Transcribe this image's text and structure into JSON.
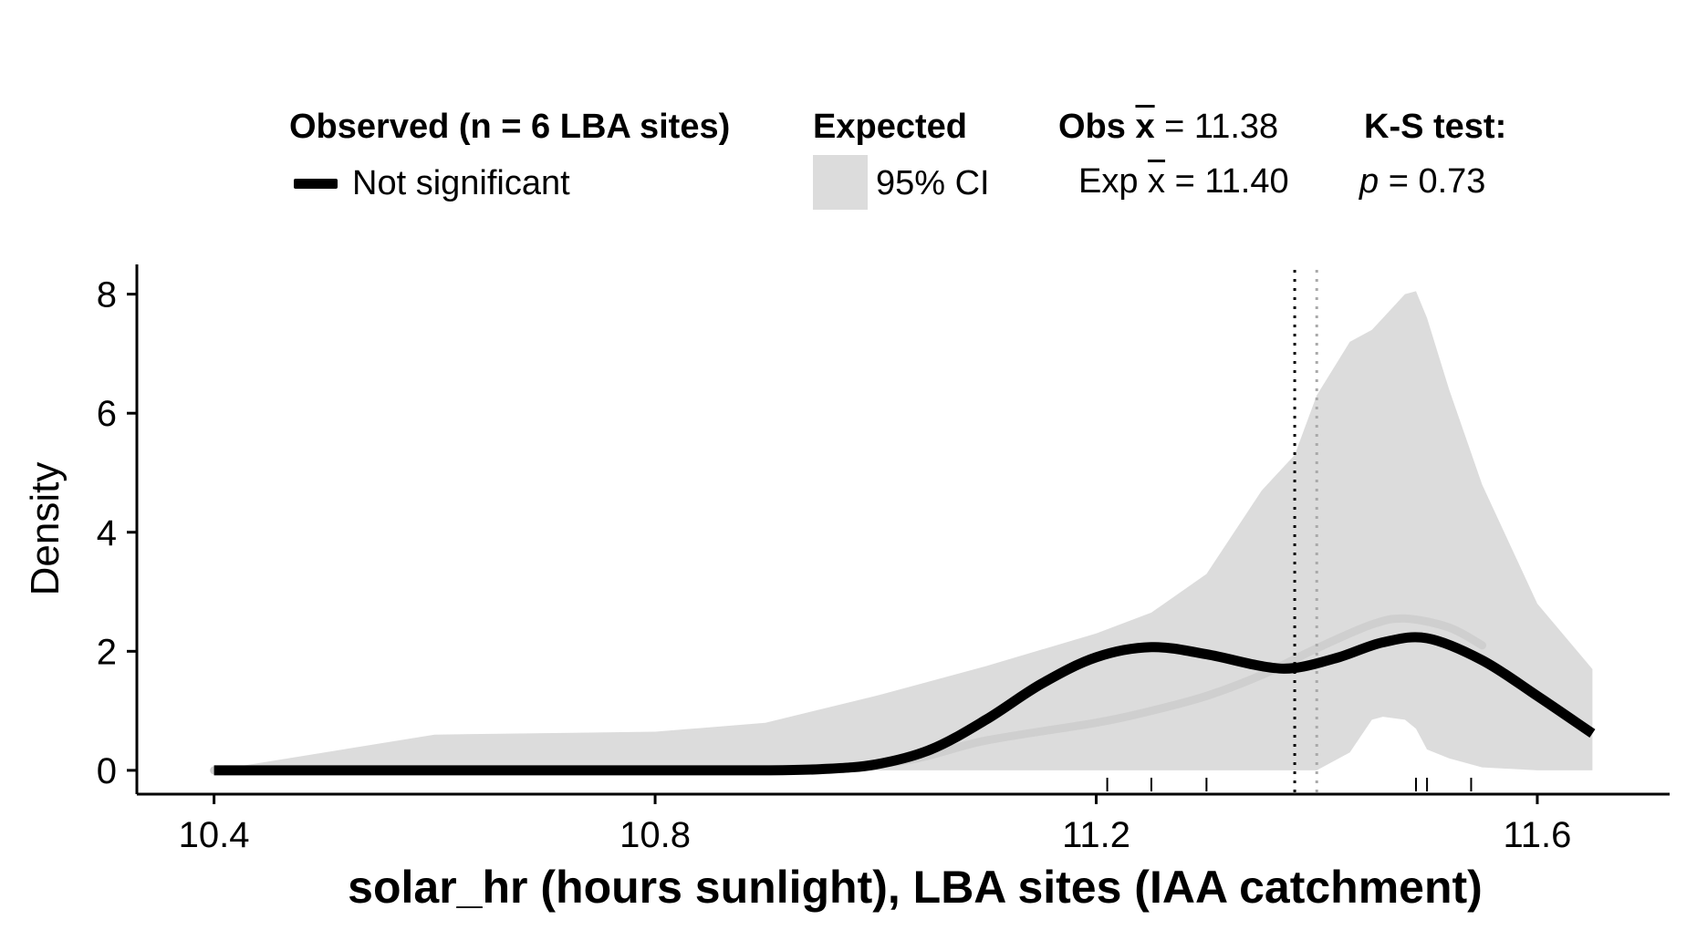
{
  "legend": {
    "observed_title": "Observed (n = 6 LBA sites)",
    "observed_key": "Not significant",
    "expected_title": "Expected",
    "expected_key": "95% CI",
    "obs_mean_label": "Obs",
    "obs_mean_symbol": "x",
    "obs_mean_value": "= 11.38",
    "exp_mean_label": "Exp",
    "exp_mean_symbol": "x",
    "exp_mean_value": "= 11.40",
    "ks_title": "K-S test:",
    "ks_p_symbol": "p",
    "ks_p_value": "= 0.73"
  },
  "chart_data": {
    "type": "line",
    "xlabel": "solar_hr (hours sunlight), LBA sites (IAA catchment)",
    "ylabel": "Density",
    "xlim": [
      10.33,
      11.72
    ],
    "ylim": [
      -0.4,
      8.5
    ],
    "x_ticks": [
      "10.4",
      "10.8",
      "11.2",
      "11.6"
    ],
    "y_ticks": [
      "0",
      "2",
      "4",
      "6",
      "8"
    ],
    "grid": false,
    "legend_position": "top",
    "observed_density": {
      "name": "Not significant",
      "color": "#000000",
      "x": [
        10.4,
        10.6,
        10.8,
        10.9,
        10.95,
        11.0,
        11.05,
        11.1,
        11.15,
        11.2,
        11.25,
        11.3,
        11.35,
        11.38,
        11.42,
        11.46,
        11.5,
        11.55,
        11.6,
        11.65
      ],
      "y": [
        0,
        0,
        0,
        0,
        0.02,
        0.1,
        0.35,
        0.85,
        1.45,
        1.9,
        2.07,
        1.95,
        1.75,
        1.72,
        1.9,
        2.15,
        2.22,
        1.85,
        1.25,
        0.62
      ]
    },
    "expected_mean_density": {
      "color": "#cfcfcf",
      "x": [
        10.4,
        10.8,
        11.0,
        11.1,
        11.2,
        11.25,
        11.3,
        11.35,
        11.4,
        11.45,
        11.48,
        11.52,
        11.55
      ],
      "y": [
        0,
        0,
        0.1,
        0.5,
        0.8,
        1.0,
        1.25,
        1.6,
        2.05,
        2.45,
        2.55,
        2.4,
        2.1
      ]
    },
    "expected_ci_band": {
      "color": "#dcdcdc",
      "x": [
        10.4,
        10.6,
        10.8,
        10.9,
        11.0,
        11.1,
        11.2,
        11.25,
        11.3,
        11.35,
        11.38,
        11.4,
        11.43,
        11.45,
        11.46,
        11.48,
        11.49,
        11.5,
        11.52,
        11.55,
        11.6,
        11.65
      ],
      "upper": [
        0,
        0.6,
        0.65,
        0.8,
        1.25,
        1.75,
        2.3,
        2.65,
        3.3,
        4.7,
        5.3,
        6.3,
        7.2,
        7.4,
        7.6,
        8.0,
        8.05,
        7.6,
        6.4,
        4.8,
        2.8,
        1.7
      ],
      "lower": [
        0,
        0,
        0,
        0,
        0,
        0,
        0,
        0,
        0,
        0,
        0,
        0,
        0.3,
        0.85,
        0.9,
        0.85,
        0.7,
        0.35,
        0.2,
        0.05,
        0,
        0
      ]
    },
    "reference_lines": [
      {
        "name": "Observed mean",
        "x": 11.38,
        "color": "#000000",
        "style": "dotted"
      },
      {
        "name": "Expected mean",
        "x": 11.4,
        "color": "#a9a9a9",
        "style": "dotted"
      }
    ],
    "rug_x": [
      11.21,
      11.25,
      11.3,
      11.49,
      11.5,
      11.54
    ]
  }
}
